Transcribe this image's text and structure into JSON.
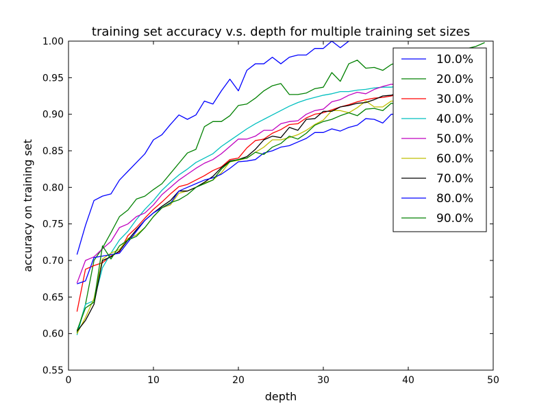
{
  "chart_data": {
    "type": "line",
    "title": "training set accuracy v.s. depth for multiple training set sizes",
    "xlabel": "depth",
    "ylabel": "accuracy on training set",
    "xlim": [
      0,
      50
    ],
    "ylim": [
      0.55,
      1.0
    ],
    "x_ticks": [
      "0",
      "10",
      "20",
      "30",
      "40",
      "50"
    ],
    "y_ticks": [
      "0.55",
      "0.60",
      "0.65",
      "0.70",
      "0.75",
      "0.80",
      "0.85",
      "0.90",
      "0.95",
      "1.00"
    ],
    "grid": false,
    "legend_position": "upper-right",
    "series": [
      {
        "name": "10.0%",
        "color": "#0000ff",
        "x": [
          1,
          2,
          3,
          4,
          5,
          6,
          7,
          8,
          9,
          10,
          11,
          12,
          13,
          14,
          15,
          16,
          17,
          18,
          19,
          20,
          21,
          22,
          23,
          24,
          25,
          26,
          27,
          28,
          29,
          30,
          31,
          32,
          33,
          34
        ],
        "values": [
          0.708,
          0.748,
          0.782,
          0.788,
          0.791,
          0.81,
          0.822,
          0.834,
          0.846,
          0.865,
          0.872,
          0.886,
          0.899,
          0.893,
          0.899,
          0.918,
          0.914,
          0.932,
          0.948,
          0.932,
          0.96,
          0.969,
          0.969,
          0.978,
          0.969,
          0.978,
          0.981,
          0.981,
          0.99,
          0.99,
          1.0,
          0.991,
          1.0,
          1.005
        ]
      },
      {
        "name": "20.0%",
        "color": "#008000",
        "x": [
          1,
          2,
          3,
          4,
          5,
          6,
          7,
          8,
          9,
          10,
          11,
          12,
          13,
          14,
          15,
          16,
          17,
          18,
          19,
          20,
          21,
          22,
          23,
          24,
          25,
          26,
          27,
          28,
          29,
          30,
          31,
          32,
          33,
          34,
          35,
          36,
          37,
          38,
          39,
          40,
          41,
          42,
          43,
          44,
          45,
          46,
          47,
          48,
          49
        ],
        "values": [
          0.601,
          0.64,
          0.7,
          0.717,
          0.738,
          0.76,
          0.769,
          0.784,
          0.788,
          0.797,
          0.805,
          0.819,
          0.833,
          0.847,
          0.852,
          0.883,
          0.89,
          0.89,
          0.898,
          0.912,
          0.914,
          0.922,
          0.932,
          0.939,
          0.942,
          0.927,
          0.927,
          0.929,
          0.935,
          0.937,
          0.957,
          0.945,
          0.969,
          0.974,
          0.963,
          0.964,
          0.96,
          0.968,
          0.972,
          0.975,
          0.978,
          0.978,
          0.98,
          0.982,
          0.985,
          0.987,
          0.99,
          0.993,
          0.998
        ]
      },
      {
        "name": "30.0%",
        "color": "#ff0000",
        "x": [
          1,
          2,
          3,
          4,
          5,
          6,
          7,
          8,
          9,
          10,
          11,
          12,
          13,
          14,
          15,
          16,
          17,
          18,
          19,
          20,
          21,
          22,
          23,
          24,
          25,
          26,
          27,
          28,
          29,
          30,
          31,
          32,
          33,
          34,
          35,
          36,
          37,
          38,
          39,
          40
        ],
        "values": [
          0.63,
          0.688,
          0.693,
          0.697,
          0.706,
          0.712,
          0.734,
          0.745,
          0.758,
          0.77,
          0.78,
          0.791,
          0.801,
          0.804,
          0.81,
          0.816,
          0.823,
          0.828,
          0.838,
          0.84,
          0.854,
          0.864,
          0.866,
          0.874,
          0.879,
          0.886,
          0.887,
          0.895,
          0.9,
          0.902,
          0.906,
          0.91,
          0.913,
          0.917,
          0.92,
          0.922,
          0.923,
          0.925,
          0.928,
          0.93
        ]
      },
      {
        "name": "40.0%",
        "color": "#00bfbf",
        "x": [
          1,
          2,
          3,
          4,
          5,
          6,
          7,
          8,
          9,
          10,
          11,
          12,
          13,
          14,
          15,
          16,
          17,
          18,
          19,
          20,
          21,
          22,
          23,
          24,
          25,
          26,
          27,
          28,
          29,
          30,
          31,
          32,
          33,
          34,
          35,
          36,
          37,
          38,
          39,
          40
        ],
        "values": [
          0.598,
          0.64,
          0.645,
          0.69,
          0.71,
          0.728,
          0.74,
          0.756,
          0.77,
          0.782,
          0.796,
          0.807,
          0.817,
          0.825,
          0.834,
          0.84,
          0.846,
          0.856,
          0.864,
          0.872,
          0.88,
          0.887,
          0.893,
          0.899,
          0.905,
          0.911,
          0.916,
          0.92,
          0.923,
          0.926,
          0.928,
          0.931,
          0.931,
          0.933,
          0.934,
          0.936,
          0.937,
          0.937,
          0.939,
          0.94
        ]
      },
      {
        "name": "50.0%",
        "color": "#bf00bf",
        "x": [
          1,
          2,
          3,
          4,
          5,
          6,
          7,
          8,
          9,
          10,
          11,
          12,
          13,
          14,
          15,
          16,
          17,
          18,
          19,
          20,
          21,
          22,
          23,
          24,
          25,
          26,
          27,
          28,
          29,
          30,
          31,
          32,
          33,
          34,
          35,
          36,
          37,
          38,
          39,
          40
        ],
        "values": [
          0.669,
          0.7,
          0.705,
          0.716,
          0.726,
          0.745,
          0.75,
          0.76,
          0.765,
          0.776,
          0.79,
          0.8,
          0.81,
          0.818,
          0.826,
          0.833,
          0.838,
          0.846,
          0.856,
          0.866,
          0.866,
          0.87,
          0.878,
          0.878,
          0.887,
          0.89,
          0.891,
          0.9,
          0.905,
          0.907,
          0.917,
          0.92,
          0.926,
          0.93,
          0.928,
          0.934,
          0.938,
          0.941,
          0.94,
          0.944
        ]
      },
      {
        "name": "60.0%",
        "color": "#bfbf00",
        "x": [
          1,
          2,
          3,
          4,
          5,
          6,
          7,
          8,
          9,
          10,
          11,
          12,
          13,
          14,
          15,
          16,
          17,
          18,
          19,
          20,
          21,
          22,
          23,
          24,
          25,
          26,
          27,
          28,
          29,
          30,
          31,
          32,
          33,
          34,
          35,
          36,
          37,
          38,
          39,
          40
        ],
        "values": [
          0.6,
          0.622,
          0.648,
          0.702,
          0.71,
          0.715,
          0.73,
          0.735,
          0.745,
          0.76,
          0.772,
          0.776,
          0.792,
          0.795,
          0.8,
          0.806,
          0.81,
          0.82,
          0.835,
          0.837,
          0.84,
          0.848,
          0.855,
          0.865,
          0.865,
          0.868,
          0.872,
          0.878,
          0.886,
          0.892,
          0.905,
          0.905,
          0.902,
          0.909,
          0.918,
          0.91,
          0.91,
          0.918,
          0.918,
          0.923
        ]
      },
      {
        "name": "70.0%",
        "color": "#000000",
        "x": [
          1,
          2,
          3,
          4,
          5,
          6,
          7,
          8,
          9,
          10,
          11,
          12,
          13,
          14,
          15,
          16,
          17,
          18,
          19,
          20,
          21,
          22,
          23,
          24,
          25,
          26,
          27,
          28,
          29,
          30,
          31,
          32,
          33,
          34,
          35,
          36,
          37,
          38,
          39,
          40
        ],
        "values": [
          0.603,
          0.618,
          0.64,
          0.7,
          0.705,
          0.713,
          0.728,
          0.742,
          0.755,
          0.765,
          0.774,
          0.782,
          0.795,
          0.795,
          0.8,
          0.807,
          0.815,
          0.827,
          0.836,
          0.838,
          0.842,
          0.852,
          0.865,
          0.87,
          0.868,
          0.882,
          0.878,
          0.893,
          0.894,
          0.904,
          0.904,
          0.91,
          0.912,
          0.915,
          0.916,
          0.92,
          0.925,
          0.926,
          0.93,
          0.928
        ]
      },
      {
        "name": "80.0%",
        "color": "#0000ff",
        "x": [
          1,
          2,
          3,
          4,
          5,
          6,
          7,
          8,
          9,
          10,
          11,
          12,
          13,
          14,
          15,
          16,
          17,
          18,
          19,
          20,
          21,
          22,
          23,
          24,
          25,
          26,
          27,
          28,
          29,
          30,
          31,
          32,
          33,
          34,
          35,
          36,
          37,
          38,
          39,
          40
        ],
        "values": [
          0.668,
          0.672,
          0.704,
          0.706,
          0.708,
          0.71,
          0.725,
          0.74,
          0.755,
          0.765,
          0.772,
          0.778,
          0.795,
          0.8,
          0.805,
          0.81,
          0.813,
          0.818,
          0.826,
          0.835,
          0.836,
          0.838,
          0.847,
          0.85,
          0.855,
          0.857,
          0.862,
          0.867,
          0.875,
          0.875,
          0.88,
          0.877,
          0.882,
          0.885,
          0.894,
          0.893,
          0.888,
          0.9,
          0.9,
          0.91
        ]
      },
      {
        "name": "90.0%",
        "color": "#008000",
        "x": [
          1,
          2,
          3,
          4,
          5,
          6,
          7,
          8,
          9,
          10,
          11,
          12,
          13,
          14,
          15,
          16,
          17,
          18,
          19,
          20,
          21,
          22,
          23,
          24,
          25,
          26,
          27,
          28,
          29,
          30,
          31,
          32,
          33,
          34,
          35,
          36,
          37,
          38,
          39,
          40
        ],
        "values": [
          0.604,
          0.635,
          0.643,
          0.72,
          0.702,
          0.72,
          0.728,
          0.733,
          0.745,
          0.76,
          0.772,
          0.779,
          0.783,
          0.79,
          0.8,
          0.805,
          0.81,
          0.825,
          0.835,
          0.838,
          0.84,
          0.848,
          0.845,
          0.855,
          0.86,
          0.87,
          0.866,
          0.874,
          0.885,
          0.89,
          0.893,
          0.898,
          0.902,
          0.898,
          0.907,
          0.908,
          0.905,
          0.915,
          0.913,
          0.918
        ]
      }
    ]
  }
}
